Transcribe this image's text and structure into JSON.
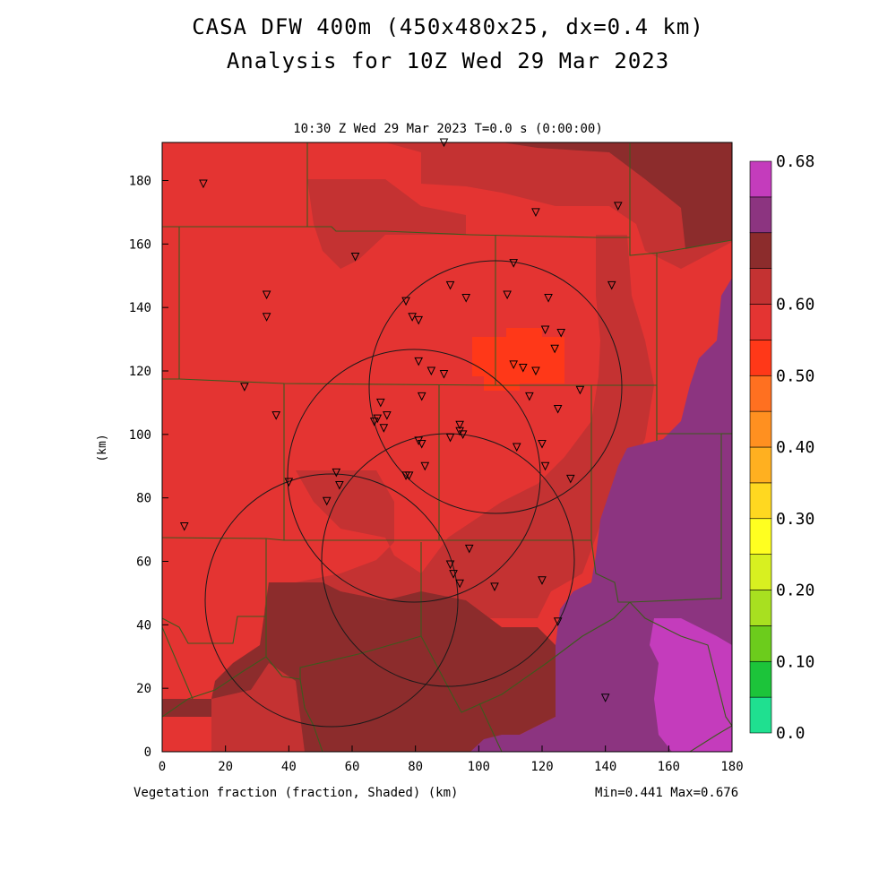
{
  "title_line1": "CASA DFW 400m (450x480x25, dx=0.4 km)",
  "title_line2": "Analysis for 10Z Wed 29 Mar 2023",
  "subtitle": "10:30 Z Wed 29 Mar 2023   T=0.0 s (0:00:00)",
  "variable_label": "Vegetation fraction (fraction, Shaded)  (km)",
  "minmax_label": "Min=0.441 Max=0.676",
  "y_axis_label": "(km)",
  "x_ticks": [
    "0",
    "20",
    "40",
    "60",
    "80",
    "100",
    "120",
    "140",
    "160",
    "180"
  ],
  "y_ticks": [
    "0",
    "20",
    "40",
    "60",
    "80",
    "100",
    "120",
    "140",
    "160",
    "180"
  ],
  "colorbar": {
    "labels": [
      "0.0",
      "0.10",
      "0.20",
      "0.30",
      "0.40",
      "0.50",
      "0.60",
      "0.68"
    ],
    "colors": [
      "#1fe090",
      "#1cc43a",
      "#6ccc1c",
      "#a8e020",
      "#d8f020",
      "#ffff20",
      "#ffd820",
      "#ffb020",
      "#ff9020",
      "#ff7020",
      "#ff3818",
      "#e43432",
      "#c43232",
      "#8c2c2c",
      "#8c3480",
      "#c43cbc"
    ]
  },
  "field_colors": {
    "c045": "#e43432",
    "c040": "#ff3818",
    "c050": "#c43232",
    "c055": "#8c2c2c",
    "c060": "#8c3480",
    "c065": "#c43cbc"
  },
  "chart_data": {
    "type": "heatmap",
    "field": "Vegetation fraction",
    "units": "fraction",
    "min": 0.441,
    "max": 0.676,
    "xlim": [
      0,
      180
    ],
    "ylim": [
      0,
      192
    ],
    "xlabel": "(km)",
    "ylabel": "(km)",
    "radar_range_rings": [
      {
        "center_km": [
          105,
          115
        ],
        "radius_km": 40
      },
      {
        "center_km": [
          80,
          87
        ],
        "radius_km": 40
      },
      {
        "center_km": [
          55,
          50
        ],
        "radius_km": 40
      },
      {
        "center_km": [
          90,
          62
        ],
        "radius_km": 40
      }
    ],
    "stations_km": [
      [
        13,
        179
      ],
      [
        89,
        192
      ],
      [
        118,
        170
      ],
      [
        144,
        172
      ],
      [
        61,
        156
      ],
      [
        111,
        154
      ],
      [
        142,
        147
      ],
      [
        33,
        144
      ],
      [
        33,
        137
      ],
      [
        77,
        142
      ],
      [
        91,
        147
      ],
      [
        96,
        143
      ],
      [
        109,
        144
      ],
      [
        122,
        143
      ],
      [
        79,
        137
      ],
      [
        81,
        136
      ],
      [
        121,
        133
      ],
      [
        126,
        132
      ],
      [
        124,
        127
      ],
      [
        81,
        123
      ],
      [
        85,
        120
      ],
      [
        89,
        119
      ],
      [
        111,
        122
      ],
      [
        114,
        121
      ],
      [
        118,
        120
      ],
      [
        26,
        115
      ],
      [
        82,
        112
      ],
      [
        116,
        112
      ],
      [
        132,
        114
      ],
      [
        36,
        106
      ],
      [
        69,
        110
      ],
      [
        67,
        104
      ],
      [
        68,
        105
      ],
      [
        71,
        106
      ],
      [
        70,
        102
      ],
      [
        125,
        108
      ],
      [
        94,
        103
      ],
      [
        94,
        101
      ],
      [
        95,
        100
      ],
      [
        81,
        98
      ],
      [
        82,
        97
      ],
      [
        91,
        99
      ],
      [
        112,
        96
      ],
      [
        120,
        97
      ],
      [
        121,
        90
      ],
      [
        83,
        90
      ],
      [
        78,
        87
      ],
      [
        77,
        87
      ],
      [
        55,
        88
      ],
      [
        56,
        84
      ],
      [
        40,
        85
      ],
      [
        52,
        79
      ],
      [
        129,
        86
      ],
      [
        7,
        71
      ],
      [
        97,
        64
      ],
      [
        91,
        59
      ],
      [
        92,
        56
      ],
      [
        94,
        53
      ],
      [
        105,
        52
      ],
      [
        120,
        54
      ],
      [
        125,
        41
      ],
      [
        140,
        17
      ]
    ]
  }
}
